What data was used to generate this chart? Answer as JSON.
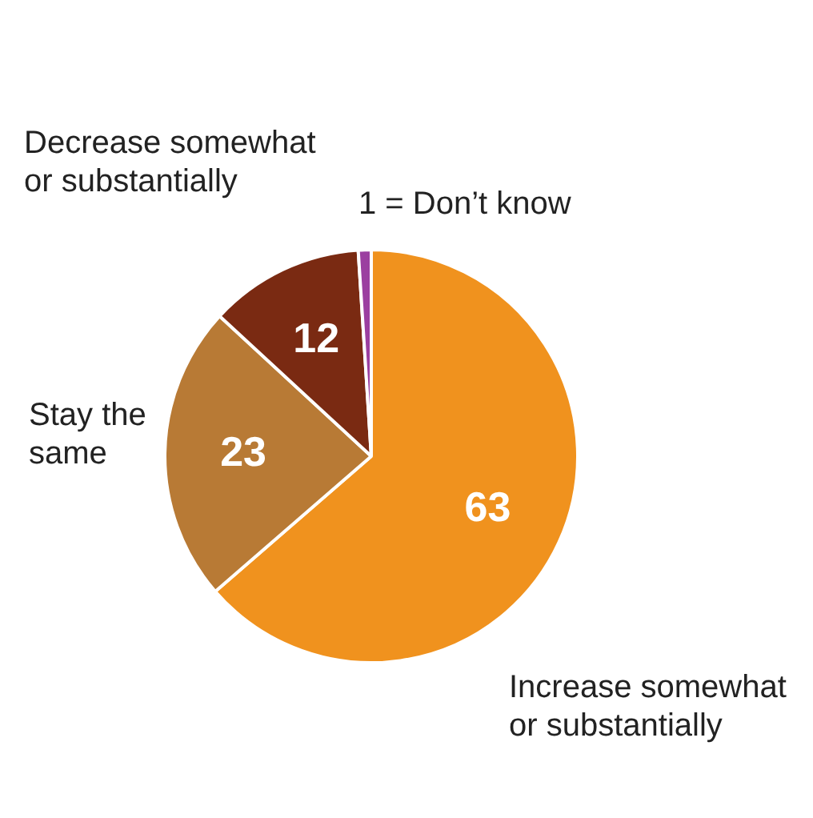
{
  "chart_data": {
    "type": "pie",
    "categories": [
      "Increase somewhat or substantially",
      "Stay the same",
      "Decrease somewhat or substantially",
      "1 = Don’t know"
    ],
    "values": [
      63,
      23,
      12,
      1
    ],
    "colors": [
      "#f0921e",
      "#b87a35",
      "#7a2a12",
      "#9b3fa0"
    ],
    "value_labels": [
      "63",
      "23",
      "12",
      null
    ],
    "legend": false
  }
}
